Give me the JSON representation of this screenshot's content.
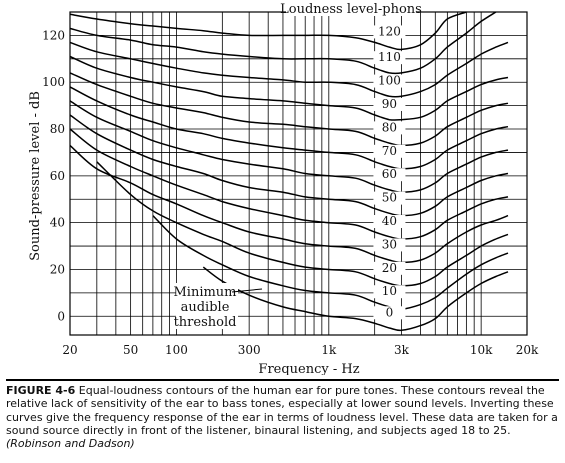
{
  "chart_data": {
    "type": "line",
    "legend_title": "Loudness level-phons",
    "xlabel": "Frequency - Hz",
    "ylabel": "Sound-pressure level - dB",
    "x_scale": "log",
    "xlim": [
      20,
      20000
    ],
    "ylim": [
      -8,
      130
    ],
    "x_ticks": [
      {
        "value": 20,
        "label": "20"
      },
      {
        "value": 50,
        "label": "50"
      },
      {
        "value": 100,
        "label": "100"
      },
      {
        "value": 300,
        "label": "300"
      },
      {
        "value": 1000,
        "label": "1k"
      },
      {
        "value": 3000,
        "label": "3k"
      },
      {
        "value": 10000,
        "label": "10k"
      },
      {
        "value": 20000,
        "label": "20k"
      }
    ],
    "y_ticks": [
      0,
      20,
      40,
      60,
      80,
      100,
      120
    ],
    "grid": true,
    "x": [
      20,
      30,
      50,
      70,
      100,
      150,
      200,
      300,
      500,
      700,
      1000,
      1500,
      2000,
      2500,
      3000,
      4000,
      5000,
      6000,
      8000,
      10000,
      12500,
      15000
    ],
    "series": [
      {
        "name": "0",
        "values": [
          null,
          null,
          null,
          null,
          null,
          21,
          15,
          9,
          4,
          2,
          0,
          -1,
          -3,
          -5,
          -6,
          -4,
          -1,
          4,
          10,
          14,
          17,
          19
        ]
      },
      {
        "name": "10",
        "values": [
          null,
          null,
          null,
          43,
          33,
          26,
          22,
          17,
          13,
          11,
          10,
          9,
          6,
          4,
          3,
          5,
          8,
          12,
          18,
          22,
          25,
          27
        ]
      },
      {
        "name": "20",
        "values": [
          null,
          66,
          52,
          45,
          40,
          35,
          32,
          27,
          23,
          21,
          20,
          19,
          16,
          14,
          13,
          14,
          17,
          21,
          26,
          30,
          33,
          35
        ]
      },
      {
        "name": "30",
        "values": [
          73,
          63,
          57,
          52,
          48,
          43,
          40,
          36,
          33,
          31,
          30,
          29,
          26,
          24,
          23,
          24,
          27,
          31,
          36,
          39,
          41,
          43
        ]
      },
      {
        "name": "40",
        "values": [
          80,
          71,
          64,
          60,
          56,
          52,
          49,
          46,
          43,
          41,
          40,
          39,
          36,
          34,
          33,
          34,
          37,
          41,
          45,
          48,
          50,
          51
        ]
      },
      {
        "name": "50",
        "values": [
          86,
          78,
          71,
          67,
          64,
          61,
          58,
          55,
          53,
          51,
          50,
          49,
          46,
          44,
          43,
          44,
          47,
          51,
          55,
          58,
          60,
          61
        ]
      },
      {
        "name": "60",
        "values": [
          92,
          85,
          79,
          75,
          72,
          69,
          67,
          65,
          63,
          61,
          60,
          59,
          56,
          54,
          53,
          54,
          57,
          61,
          65,
          68,
          70,
          71
        ]
      },
      {
        "name": "70",
        "values": [
          98,
          92,
          86,
          83,
          80,
          78,
          76,
          74,
          72,
          71,
          70,
          69,
          66,
          64,
          63,
          64,
          67,
          71,
          75,
          78,
          80,
          81
        ]
      },
      {
        "name": "80",
        "values": [
          104,
          99,
          94,
          91,
          89,
          87,
          85,
          83,
          82,
          81,
          80,
          79,
          76,
          74,
          73,
          74,
          77,
          81,
          85,
          88,
          90,
          91
        ]
      },
      {
        "name": "90",
        "values": [
          111,
          106,
          102,
          100,
          98,
          96,
          94,
          93,
          92,
          91,
          90,
          89,
          86,
          84,
          84,
          85,
          88,
          92,
          96,
          99,
          101,
          102
        ]
      },
      {
        "name": "100",
        "values": [
          117,
          113,
          110,
          108,
          106,
          104,
          103,
          102,
          101,
          100,
          100,
          99,
          96,
          94,
          94,
          96,
          99,
          103,
          108,
          112,
          115,
          117
        ]
      },
      {
        "name": "110",
        "values": [
          123,
          120,
          118,
          116,
          115,
          113,
          112,
          111,
          110,
          110,
          110,
          109,
          106,
          104,
          104,
          106,
          110,
          115,
          121,
          126,
          130,
          null
        ]
      },
      {
        "name": "120",
        "values": [
          129,
          127,
          125,
          124,
          123,
          122,
          121,
          120,
          120,
          120,
          120,
          119,
          117,
          115,
          114,
          116,
          121,
          127,
          130,
          null,
          null,
          null
        ]
      }
    ],
    "annotations": [
      "Minimum",
      "audible",
      "threshold"
    ]
  },
  "caption": {
    "label": "FIGURE 4-6",
    "text": "Equal-loudness contours of the human ear for pure tones. These contours reveal the relative lack of sensitivity of the ear to bass tones, especially at lower sound levels. Inverting these curves give the frequency response of the ear in terms of loudness level. These data are taken for a sound source directly in front of the listener, binaural listening, and subjects aged 18 to 25.",
    "citation": "(Robinson and Dadson)"
  }
}
